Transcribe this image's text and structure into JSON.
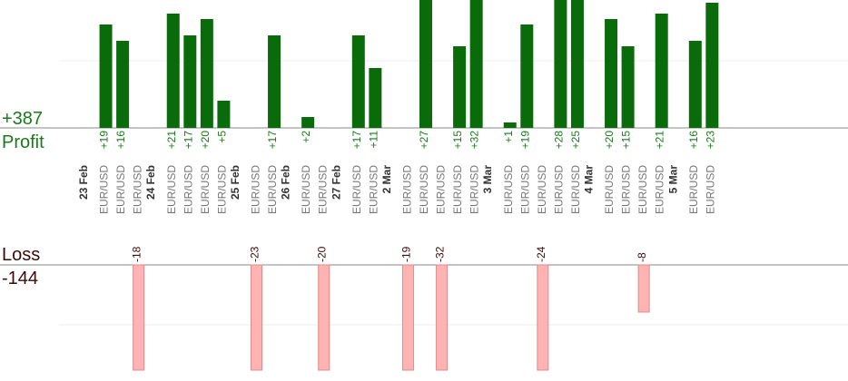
{
  "summary": {
    "profit_total": "+387",
    "profit_label": "Profit",
    "loss_label": "Loss",
    "loss_total": "-144"
  },
  "colors": {
    "profit_bar": "#0a6b0a",
    "profit_text": "#1a7a1a",
    "loss_bar": "#ffb3b3",
    "loss_bar_stroke": "#e08a8a",
    "loss_text": "#3d0a0a",
    "date_text": "#333333",
    "pair_text": "#777777",
    "gridline": "#eeeeee",
    "baseline": "#888888"
  },
  "chart_data": {
    "type": "bar",
    "pair": "EUR/USD",
    "clipped_note": "bars taller than the panel are clipped at the panel edge",
    "days": [
      {
        "label": "23 Feb",
        "trades": [
          19,
          16,
          -18
        ]
      },
      {
        "label": "24 Feb",
        "trades": [
          21,
          17,
          20,
          5
        ]
      },
      {
        "label": "25 Feb",
        "trades": [
          -23,
          17
        ]
      },
      {
        "label": "26 Feb",
        "trades": [
          2,
          -20
        ]
      },
      {
        "label": "27 Feb",
        "trades": [
          17,
          11
        ]
      },
      {
        "label": "2 Mar",
        "trades": [
          -19,
          27,
          -32,
          15,
          32
        ]
      },
      {
        "label": "3 Mar",
        "trades": [
          1,
          19,
          -24,
          28,
          25
        ]
      },
      {
        "label": "4 Mar",
        "trades": [
          20,
          15,
          -8,
          21
        ]
      },
      {
        "label": "5 Mar",
        "trades": [
          16,
          23
        ]
      }
    ]
  }
}
